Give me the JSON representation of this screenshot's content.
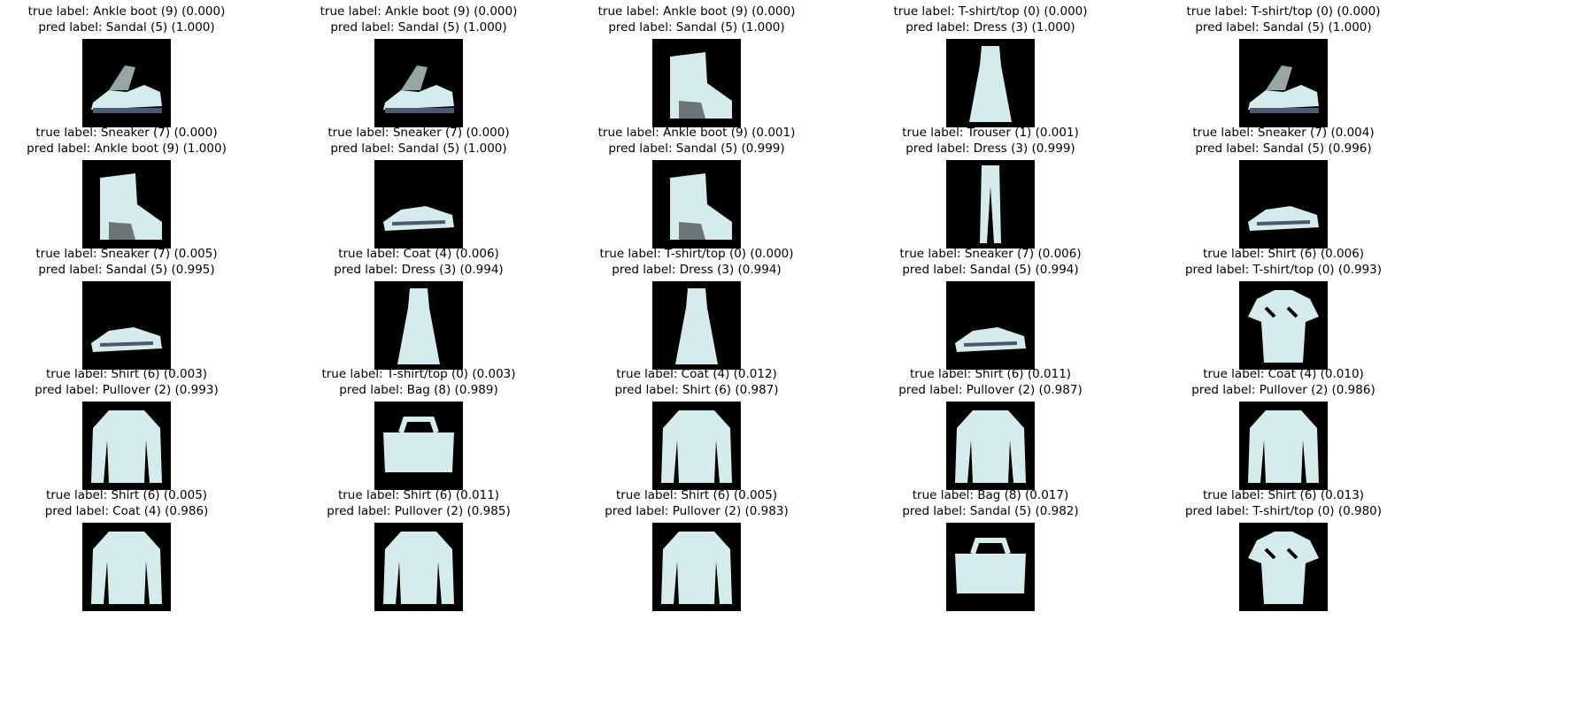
{
  "samples": [
    {
      "true_text": "true label: Ankle boot (9) (0.000)",
      "pred_text": "pred label: Sandal (5) (1.000)",
      "icon": "sandal-icon"
    },
    {
      "true_text": "true label: Ankle boot (9) (0.000)",
      "pred_text": "pred label: Sandal (5) (1.000)",
      "icon": "sandal-icon"
    },
    {
      "true_text": "true label: Ankle boot (9) (0.000)",
      "pred_text": "pred label: Sandal (5) (1.000)",
      "icon": "boot-icon"
    },
    {
      "true_text": "true label: T-shirt/top (0) (0.000)",
      "pred_text": "pred label: Dress (3) (1.000)",
      "icon": "dress-icon"
    },
    {
      "true_text": "true label: T-shirt/top (0) (0.000)",
      "pred_text": "pred label: Sandal (5) (1.000)",
      "icon": "sandal-icon"
    },
    {
      "true_text": "true label: Sneaker (7) (0.000)",
      "pred_text": "pred label: Ankle boot (9) (1.000)",
      "icon": "boot-icon"
    },
    {
      "true_text": "true label: Sneaker (7) (0.000)",
      "pred_text": "pred label: Sandal (5) (1.000)",
      "icon": "sneaker-icon"
    },
    {
      "true_text": "true label: Ankle boot (9) (0.001)",
      "pred_text": "pred label: Sandal (5) (0.999)",
      "icon": "boot-icon"
    },
    {
      "true_text": "true label: Trouser (1) (0.001)",
      "pred_text": "pred label: Dress (3) (0.999)",
      "icon": "trouser-icon"
    },
    {
      "true_text": "true label: Sneaker (7) (0.004)",
      "pred_text": "pred label: Sandal (5) (0.996)",
      "icon": "sneaker-icon"
    },
    {
      "true_text": "true label: Sneaker (7) (0.005)",
      "pred_text": "pred label: Sandal (5) (0.995)",
      "icon": "sneaker-icon"
    },
    {
      "true_text": "true label: Coat (4) (0.006)",
      "pred_text": "pred label: Dress (3) (0.994)",
      "icon": "dress-icon"
    },
    {
      "true_text": "true label: T-shirt/top (0) (0.000)",
      "pred_text": "pred label: Dress (3) (0.994)",
      "icon": "dress-icon"
    },
    {
      "true_text": "true label: Sneaker (7) (0.006)",
      "pred_text": "pred label: Sandal (5) (0.994)",
      "icon": "sneaker-icon"
    },
    {
      "true_text": "true label: Shirt (6) (0.006)",
      "pred_text": "pred label: T-shirt/top (0) (0.993)",
      "icon": "tshirt-icon"
    },
    {
      "true_text": "true label: Shirt (6) (0.003)",
      "pred_text": "pred label: Pullover (2) (0.993)",
      "icon": "pullover-icon"
    },
    {
      "true_text": "true label: T-shirt/top (0) (0.003)",
      "pred_text": "pred label: Bag (8) (0.989)",
      "icon": "bag-icon"
    },
    {
      "true_text": "true label: Coat (4) (0.012)",
      "pred_text": "pred label: Shirt (6) (0.987)",
      "icon": "pullover-icon"
    },
    {
      "true_text": "true label: Shirt (6) (0.011)",
      "pred_text": "pred label: Pullover (2) (0.987)",
      "icon": "pullover-icon"
    },
    {
      "true_text": "true label: Coat (4) (0.010)",
      "pred_text": "pred label: Pullover (2) (0.986)",
      "icon": "pullover-icon"
    },
    {
      "true_text": "true label: Shirt (6) (0.005)",
      "pred_text": "pred label: Coat (4) (0.986)",
      "icon": "pullover-icon"
    },
    {
      "true_text": "true label: Shirt (6) (0.011)",
      "pred_text": "pred label: Pullover (2) (0.985)",
      "icon": "pullover-icon"
    },
    {
      "true_text": "true label: Shirt (6) (0.005)",
      "pred_text": "pred label: Pullover (2) (0.983)",
      "icon": "pullover-icon"
    },
    {
      "true_text": "true label: Bag (8) (0.017)",
      "pred_text": "pred label: Sandal (5) (0.982)",
      "icon": "bag-icon"
    },
    {
      "true_text": "true label: Shirt (6) (0.013)",
      "pred_text": "pred label: T-shirt/top (0) (0.980)",
      "icon": "tshirt-icon"
    }
  ],
  "colors": {
    "background": "#000000",
    "ink": "#d6ebeb",
    "ink_dark": "#4a5a70"
  }
}
